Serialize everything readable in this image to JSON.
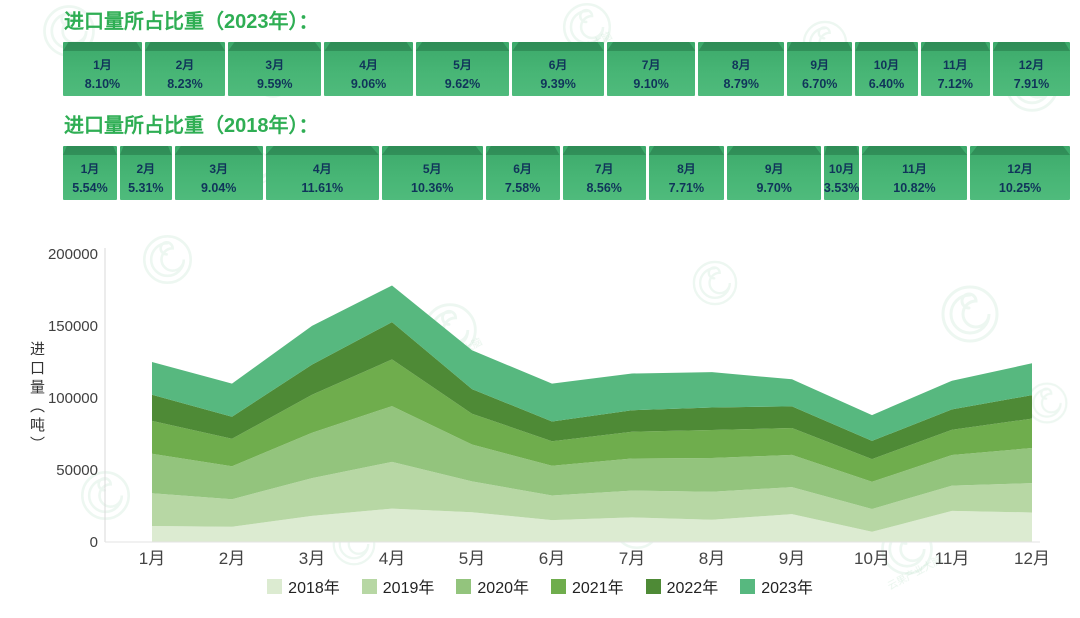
{
  "watermark_text": "云果产业大脑",
  "ratio_2023": {
    "title": "进口量所占比重（2023年）：",
    "items": [
      {
        "month": "1月",
        "pct": "8.10%"
      },
      {
        "month": "2月",
        "pct": "8.23%"
      },
      {
        "month": "3月",
        "pct": "9.59%"
      },
      {
        "month": "4月",
        "pct": "9.06%"
      },
      {
        "month": "5月",
        "pct": "9.62%"
      },
      {
        "month": "6月",
        "pct": "9.39%"
      },
      {
        "month": "7月",
        "pct": "9.10%"
      },
      {
        "month": "8月",
        "pct": "8.79%"
      },
      {
        "month": "9月",
        "pct": "6.70%"
      },
      {
        "month": "10月",
        "pct": "6.40%"
      },
      {
        "month": "11月",
        "pct": "7.12%"
      },
      {
        "month": "12月",
        "pct": "7.91%"
      }
    ]
  },
  "ratio_2018": {
    "title": "进口量所占比重（2018年）：",
    "items": [
      {
        "month": "1月",
        "pct": "5.54%"
      },
      {
        "month": "2月",
        "pct": "5.31%"
      },
      {
        "month": "3月",
        "pct": "9.04%"
      },
      {
        "month": "4月",
        "pct": "11.61%"
      },
      {
        "month": "5月",
        "pct": "10.36%"
      },
      {
        "month": "6月",
        "pct": "7.58%"
      },
      {
        "month": "7月",
        "pct": "8.56%"
      },
      {
        "month": "8月",
        "pct": "7.71%"
      },
      {
        "month": "9月",
        "pct": "9.70%"
      },
      {
        "month": "10月",
        "pct": "3.53%"
      },
      {
        "month": "11月",
        "pct": "10.82%"
      },
      {
        "month": "12月",
        "pct": "10.25%"
      }
    ]
  },
  "chart_data": {
    "type": "area",
    "stacked": true,
    "title": "",
    "xlabel": "",
    "ylabel": "进口量（吨）",
    "ylim": [
      0,
      200000
    ],
    "yticks": [
      0,
      50000,
      100000,
      150000,
      200000
    ],
    "grid": false,
    "legend_position": "bottom",
    "x": [
      "1月",
      "2月",
      "3月",
      "4月",
      "5月",
      "6月",
      "7月",
      "8月",
      "9月",
      "10月",
      "11月",
      "12月"
    ],
    "series": [
      {
        "name": "2018年",
        "color": "#dcebd1",
        "values": [
          11100,
          10600,
          18100,
          23200,
          20700,
          15200,
          17100,
          15400,
          19400,
          7100,
          21600,
          20500
        ]
      },
      {
        "name": "2019年",
        "color": "#b7d7a4",
        "values": [
          22800,
          19100,
          26300,
          32400,
          21400,
          17100,
          18600,
          19500,
          18700,
          15800,
          17600,
          20400
        ]
      },
      {
        "name": "2020年",
        "color": "#93c47d",
        "values": [
          27400,
          22900,
          31500,
          38800,
          25600,
          20600,
          22300,
          23400,
          22400,
          18900,
          21200,
          24400
        ]
      },
      {
        "name": "2021年",
        "color": "#6fad4d",
        "values": [
          22800,
          19100,
          26300,
          32400,
          21400,
          17100,
          18600,
          19500,
          18700,
          15800,
          17600,
          20400
        ]
      },
      {
        "name": "2022年",
        "color": "#4e8a36",
        "values": [
          18200,
          15300,
          21000,
          25900,
          17100,
          13700,
          14900,
          15600,
          15000,
          12600,
          14100,
          16300
        ]
      },
      {
        "name": "2023年",
        "color": "#57b87f",
        "values": [
          22700,
          23000,
          26900,
          25400,
          26900,
          26300,
          25500,
          24600,
          18800,
          17900,
          19900,
          22100
        ]
      }
    ]
  }
}
